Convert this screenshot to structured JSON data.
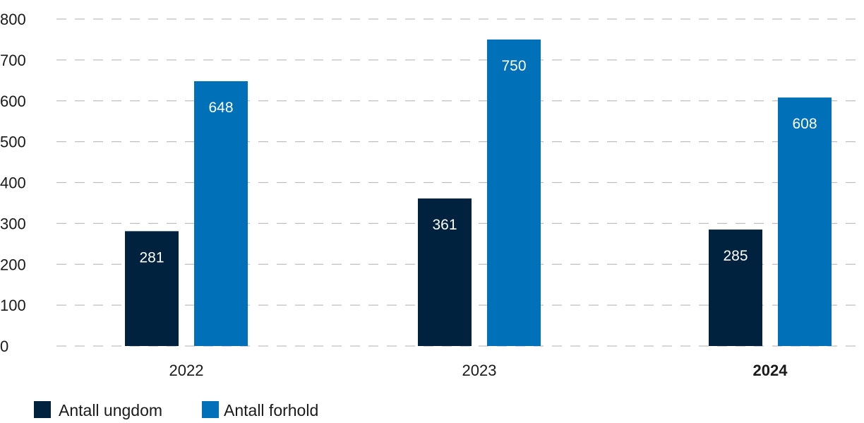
{
  "chart_data": {
    "type": "bar",
    "categories": [
      "2022",
      "2023",
      "2024"
    ],
    "series": [
      {
        "name": "Antall ungdom",
        "values": [
          281,
          361,
          285
        ],
        "color": "#00223f"
      },
      {
        "name": "Antall forhold",
        "values": [
          648,
          750,
          608
        ],
        "color": "#0070b8"
      }
    ],
    "ylim": [
      0,
      800
    ],
    "yticks": [
      "0",
      "100",
      "200",
      "300",
      "400",
      "500",
      "600",
      "700",
      "800"
    ],
    "grid": true,
    "legend": "bottom-left",
    "bold_category": "2024",
    "colors": {
      "grid": "#bfbfbf",
      "label_inside": "#ffffff",
      "text": "#1a1a1a"
    }
  }
}
